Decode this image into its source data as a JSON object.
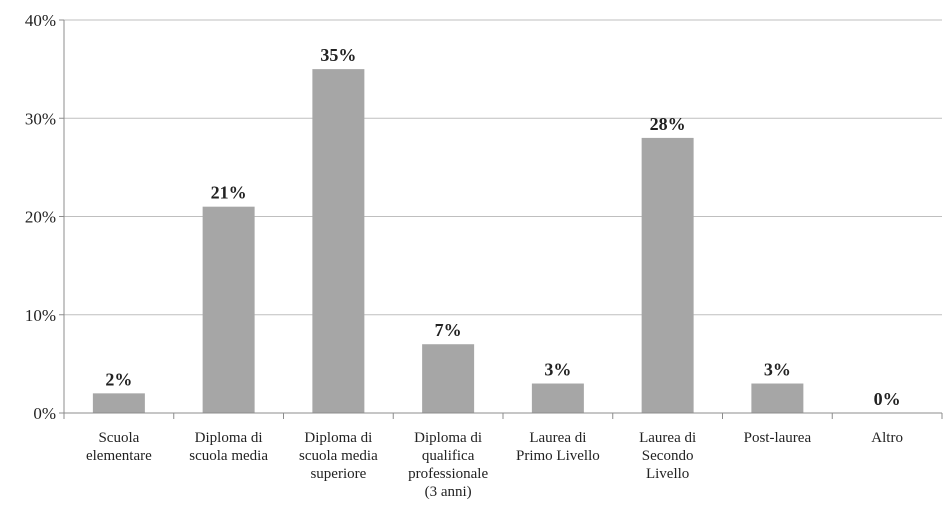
{
  "chart_data": {
    "type": "bar",
    "title": "",
    "xlabel": "",
    "ylabel": "",
    "categories": [
      "Scuola elementare",
      "Diploma di scuola media",
      "Diploma di scuola media superiore",
      "Diploma di qualifica professionale (3 anni)",
      "Laurea di Primo Livello",
      "Laurea di Secondo Livello",
      "Post-laurea",
      "Altro"
    ],
    "category_label_lines": [
      [
        "Scuola",
        "elementare"
      ],
      [
        "Diploma di",
        "scuola media"
      ],
      [
        "Diploma di",
        "scuola media",
        "superiore"
      ],
      [
        "Diploma di",
        "qualifica",
        "professionale",
        "(3 anni)"
      ],
      [
        "Laurea di",
        "Primo Livello"
      ],
      [
        "Laurea di",
        "Secondo",
        "Livello"
      ],
      [
        "Post-laurea"
      ],
      [
        "Altro"
      ]
    ],
    "values": [
      2,
      21,
      35,
      7,
      3,
      28,
      3,
      0
    ],
    "data_labels": [
      "2%",
      "21%",
      "35%",
      "7%",
      "3%",
      "28%",
      "3%",
      "0%"
    ],
    "ylim": [
      0,
      40
    ],
    "yticks": [
      0,
      10,
      20,
      30,
      40
    ],
    "ytick_labels": [
      "0%",
      "10%",
      "20%",
      "30%",
      "40%"
    ],
    "grid": true,
    "legend": "none",
    "colors": {
      "bar": "#a6a6a6",
      "gridline": "#bfbfbf",
      "axis": "#8c8c8c",
      "text": "#222222"
    }
  }
}
